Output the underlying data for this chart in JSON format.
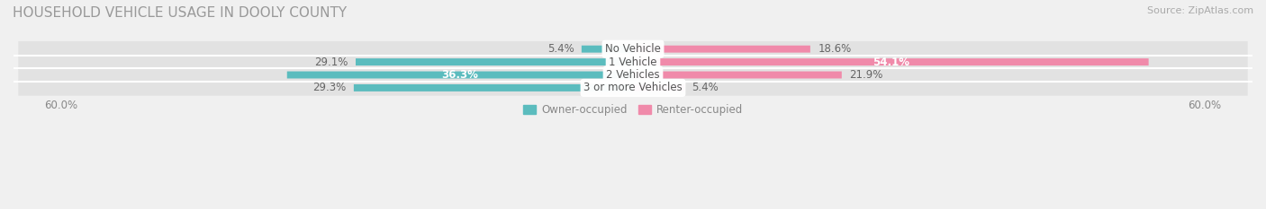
{
  "title": "HOUSEHOLD VEHICLE USAGE IN DOOLY COUNTY",
  "source": "Source: ZipAtlas.com",
  "categories": [
    "No Vehicle",
    "1 Vehicle",
    "2 Vehicles",
    "3 or more Vehicles"
  ],
  "owner_values": [
    5.4,
    29.1,
    36.3,
    29.3
  ],
  "renter_values": [
    18.6,
    54.1,
    21.9,
    5.4
  ],
  "owner_color": "#5bbcbe",
  "renter_color": "#f08aaa",
  "owner_label": "Owner-occupied",
  "renter_label": "Renter-occupied",
  "axis_max": 60.0,
  "axis_label": "60.0%",
  "background_color": "#f0f0f0",
  "row_bg_color": "#e2e2e2",
  "title_fontsize": 11,
  "source_fontsize": 8,
  "label_fontsize": 8.5,
  "category_fontsize": 8.5,
  "bar_height": 0.55,
  "inside_owner": [
    2
  ],
  "inside_renter": [
    1
  ]
}
